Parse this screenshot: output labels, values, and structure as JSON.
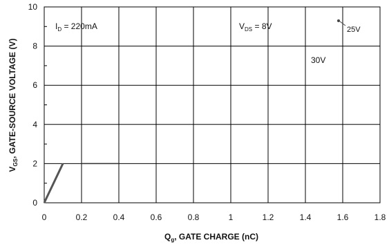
{
  "chart_data": {
    "type": "line",
    "xlabel": {
      "main": "Q",
      "sub": "g",
      "rest": ", GATE CHARGE (nC)"
    },
    "ylabel": {
      "main": "V",
      "sub": "GS",
      "rest": ", GATE-SOURCE VOLTAGE (V)"
    },
    "xlim": [
      0,
      1.8
    ],
    "ylim": [
      0,
      10
    ],
    "x_ticks": [
      0,
      0.2,
      0.4,
      0.6,
      0.8,
      1,
      1.2,
      1.4,
      1.6,
      1.8
    ],
    "y_ticks": [
      0,
      2,
      4,
      6,
      8,
      10
    ],
    "x_tick_labels": [
      "0",
      "0.2",
      "0.4",
      "0.6",
      "0.8",
      "1",
      "1.2",
      "1.4",
      "1.6",
      "1.8"
    ],
    "y_tick_labels": [
      "0",
      "2",
      "4",
      "6",
      "8",
      "10"
    ],
    "grid": true,
    "series": [
      {
        "points": [
          [
            0,
            0
          ],
          [
            0.1,
            2
          ]
        ]
      },
      {
        "points": [
          [
            0.2,
            2
          ],
          [
            0.4,
            2
          ]
        ]
      }
    ],
    "annotations": {
      "id": {
        "main": "I",
        "sub": "D",
        "rest": " = 220mA"
      },
      "vds": {
        "main": "V",
        "sub": "DS",
        "rest": " = 8V"
      },
      "v30": "30V",
      "v25": "25V"
    }
  }
}
